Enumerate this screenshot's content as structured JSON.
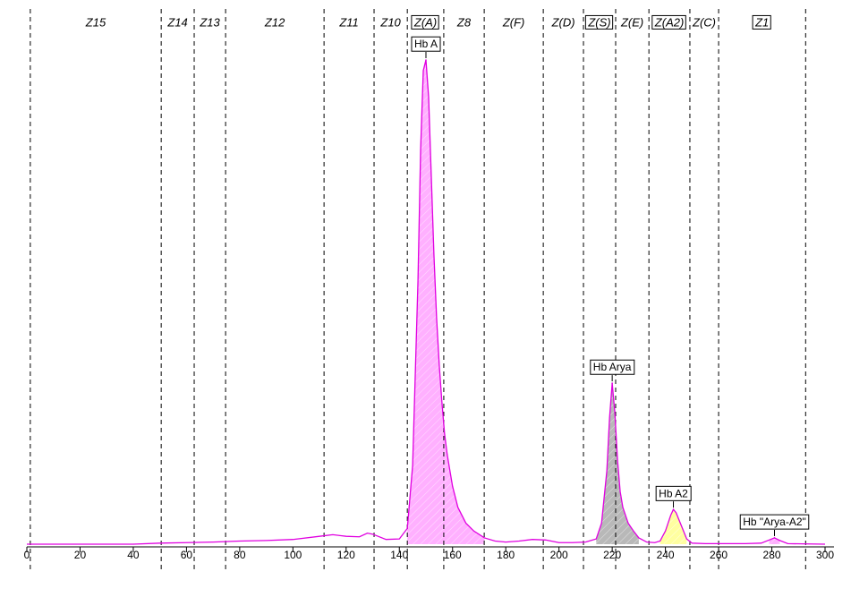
{
  "chart_data": {
    "type": "line",
    "xlim": [
      0,
      300
    ],
    "ylim": [
      0,
      100
    ],
    "xticks": [
      0,
      20,
      40,
      60,
      80,
      100,
      120,
      140,
      160,
      180,
      200,
      220,
      240,
      260,
      280,
      300
    ],
    "zone_boundaries": [
      1.3,
      50.5,
      62.9,
      74.7,
      111.7,
      130.5,
      143,
      156.7,
      171.9,
      194.1,
      209.2,
      221.3,
      233.8,
      249.2,
      260,
      292.7
    ],
    "zones": [
      {
        "name": "Z15",
        "boxed": false
      },
      {
        "name": "Z14",
        "boxed": false
      },
      {
        "name": "Z13",
        "boxed": false
      },
      {
        "name": "Z12",
        "boxed": false
      },
      {
        "name": "Z11",
        "boxed": false
      },
      {
        "name": "Z10",
        "boxed": false
      },
      {
        "name": "Z(A)",
        "boxed": true
      },
      {
        "name": "Z8",
        "boxed": false
      },
      {
        "name": "Z(F)",
        "boxed": false
      },
      {
        "name": "Z(D)",
        "boxed": false
      },
      {
        "name": "Z(S)",
        "boxed": true
      },
      {
        "name": "Z(E)",
        "boxed": false
      },
      {
        "name": "Z(A2)",
        "boxed": true
      },
      {
        "name": "Z(C)",
        "boxed": false
      },
      {
        "name": "Z1",
        "boxed": true
      }
    ],
    "series": [
      {
        "color": "#e000e0",
        "x": [
          0,
          20,
          40,
          50,
          60,
          70,
          80,
          90,
          100,
          110,
          115,
          120,
          125,
          128,
          130,
          135,
          140,
          143,
          145,
          147,
          148,
          149,
          150,
          151,
          152,
          153,
          154,
          155,
          156,
          157,
          158,
          160,
          162,
          165,
          168,
          172,
          176,
          180,
          185,
          190,
          195,
          200,
          205,
          210,
          214,
          216,
          218,
          219,
          220,
          221,
          222,
          223,
          224,
          226,
          228,
          230,
          233,
          236,
          238,
          240,
          242,
          243,
          244,
          246,
          248,
          250,
          255,
          260,
          270,
          276,
          279,
          281,
          283,
          286,
          300
        ],
        "values": [
          0,
          0,
          0,
          0.2,
          0.3,
          0.4,
          0.6,
          0.7,
          0.9,
          1.5,
          1.8,
          1.5,
          1.4,
          2.1,
          1.9,
          0.9,
          1.0,
          3,
          15,
          50,
          75,
          90,
          92,
          85,
          70,
          55,
          43,
          34,
          27,
          21,
          17,
          11,
          7,
          4,
          2.5,
          1.2,
          0.6,
          0.4,
          0.6,
          0.9,
          0.8,
          0.3,
          0.3,
          0.4,
          1,
          4,
          14,
          24,
          30.6,
          25,
          16,
          10,
          7,
          4,
          2.5,
          1.2,
          0.4,
          0.3,
          0.6,
          2.5,
          5.5,
          6.6,
          6,
          3.5,
          1,
          0.2,
          0.1,
          0.1,
          0.1,
          0.2,
          0.8,
          1.2,
          0.7,
          0.1,
          0
        ]
      }
    ],
    "peaks": [
      {
        "label": "Hb A",
        "x": 150,
        "value": 92,
        "range": [
          143,
          172
        ],
        "color": "#ffb0ff"
      },
      {
        "label": "Hb Arya",
        "x": 220,
        "value": 30.6,
        "range": [
          214,
          230
        ],
        "color": "#b8b8b8"
      },
      {
        "label": "Hb A2",
        "x": 243,
        "value": 6.6,
        "range": [
          238,
          249
        ],
        "color": "#ffffa0"
      },
      {
        "label": "Hb \"Arya-A2\"",
        "x": 281,
        "value": 1.2,
        "range": [
          277,
          285
        ],
        "color": "#ffb0ff"
      }
    ]
  }
}
